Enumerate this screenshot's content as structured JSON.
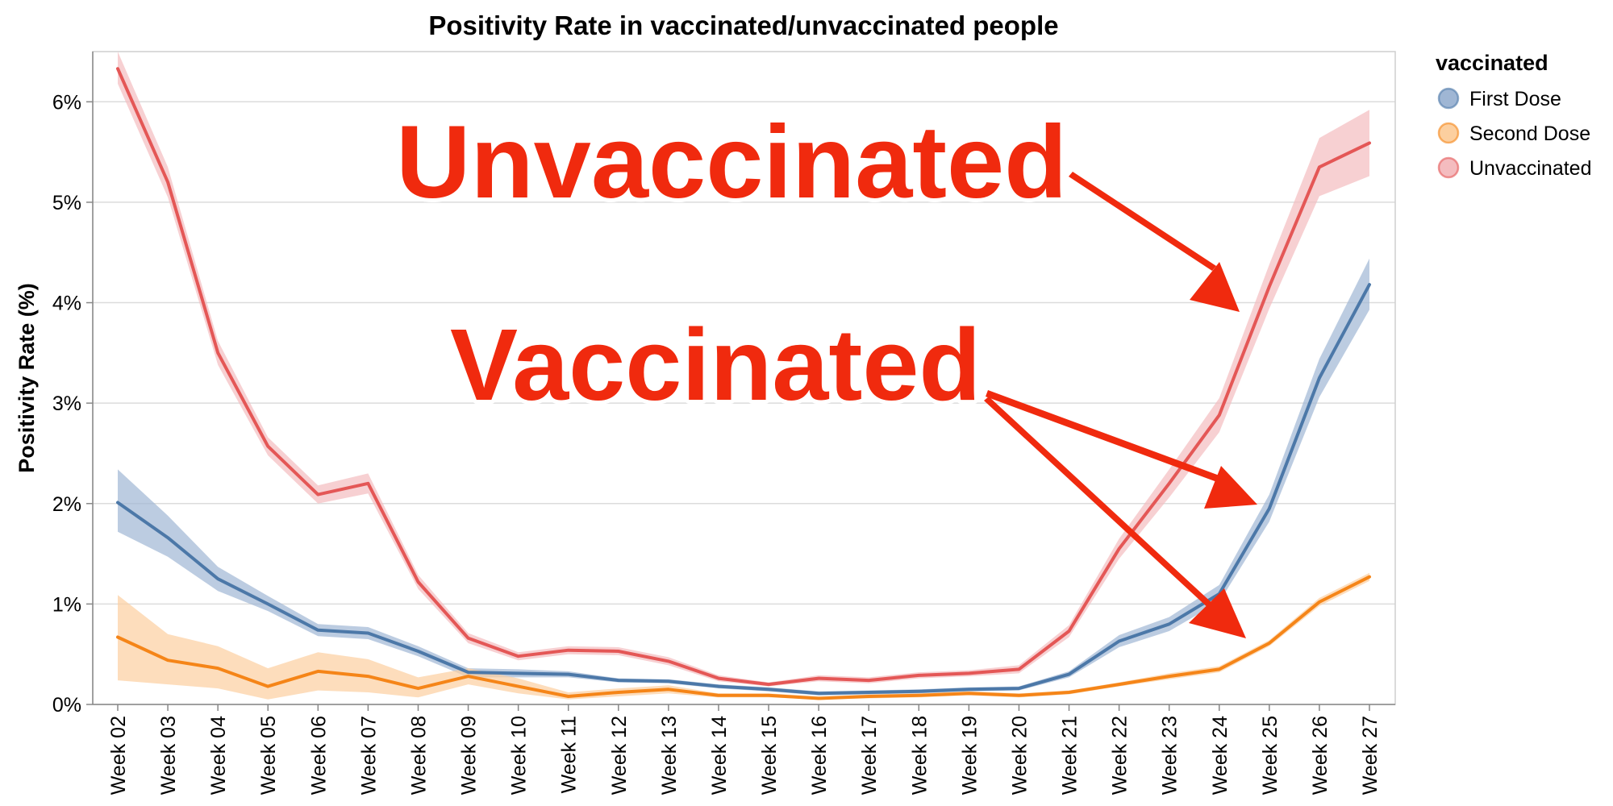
{
  "chart_data": {
    "type": "line",
    "title": "Positivity Rate in vaccinated/unvaccinated people",
    "xlabel": "",
    "ylabel": "Positivity Rate (%)",
    "ylim": [
      0,
      6.5
    ],
    "yticks": [
      "0%",
      "1%",
      "2%",
      "3%",
      "4%",
      "5%",
      "6%"
    ],
    "grid": true,
    "legend": {
      "title": "vaccinated",
      "position": "right"
    },
    "categories": [
      "Week 02",
      "Week 03",
      "Week 04",
      "Week 05",
      "Week 06",
      "Week 07",
      "Week 08",
      "Week 09",
      "Week 10",
      "Week 11",
      "Week 12",
      "Week 13",
      "Week 14",
      "Week 15",
      "Week 16",
      "Week 17",
      "Week 18",
      "Week 19",
      "Week 20",
      "Week 21",
      "Week 22",
      "Week 23",
      "Week 24",
      "Week 25",
      "Week 26",
      "Week 27"
    ],
    "series": [
      {
        "name": "First Dose",
        "color": "#4c78a8",
        "band_color": "#9fb6d4",
        "values": [
          2.01,
          1.66,
          1.25,
          1.0,
          0.74,
          0.71,
          0.53,
          0.32,
          0.31,
          0.3,
          0.24,
          0.23,
          0.18,
          0.15,
          0.11,
          0.12,
          0.13,
          0.15,
          0.16,
          0.3,
          0.63,
          0.8,
          1.1,
          1.95,
          3.25,
          4.18
        ],
        "lower": [
          1.72,
          1.47,
          1.13,
          0.93,
          0.68,
          0.65,
          0.48,
          0.27,
          0.27,
          0.27,
          0.22,
          0.21,
          0.16,
          0.13,
          0.09,
          0.1,
          0.11,
          0.13,
          0.14,
          0.27,
          0.57,
          0.73,
          1.02,
          1.82,
          3.06,
          3.93
        ],
        "upper": [
          2.34,
          1.88,
          1.37,
          1.08,
          0.8,
          0.77,
          0.58,
          0.36,
          0.35,
          0.33,
          0.26,
          0.25,
          0.2,
          0.17,
          0.13,
          0.14,
          0.15,
          0.17,
          0.18,
          0.33,
          0.69,
          0.87,
          1.19,
          2.09,
          3.44,
          4.44
        ]
      },
      {
        "name": "Second Dose",
        "color": "#f58518",
        "band_color": "#fccf9f",
        "values": [
          0.67,
          0.44,
          0.36,
          0.18,
          0.33,
          0.28,
          0.16,
          0.28,
          0.18,
          0.08,
          0.12,
          0.15,
          0.09,
          0.09,
          0.06,
          0.08,
          0.09,
          0.11,
          0.09,
          0.12,
          0.2,
          0.28,
          0.35,
          0.61,
          1.02,
          1.27
        ],
        "lower": [
          0.24,
          0.2,
          0.16,
          0.05,
          0.14,
          0.12,
          0.07,
          0.2,
          0.11,
          0.05,
          0.08,
          0.11,
          0.07,
          0.07,
          0.05,
          0.06,
          0.07,
          0.09,
          0.07,
          0.1,
          0.18,
          0.25,
          0.32,
          0.58,
          0.98,
          1.23
        ],
        "upper": [
          1.09,
          0.7,
          0.58,
          0.36,
          0.52,
          0.45,
          0.27,
          0.36,
          0.26,
          0.12,
          0.16,
          0.19,
          0.11,
          0.11,
          0.08,
          0.1,
          0.11,
          0.13,
          0.11,
          0.14,
          0.22,
          0.31,
          0.38,
          0.64,
          1.06,
          1.31
        ]
      },
      {
        "name": "Unvaccinated",
        "color": "#e45756",
        "band_color": "#f4bcbf",
        "values": [
          6.33,
          5.2,
          3.5,
          2.57,
          2.09,
          2.2,
          1.22,
          0.66,
          0.48,
          0.54,
          0.53,
          0.43,
          0.26,
          0.2,
          0.26,
          0.24,
          0.29,
          0.31,
          0.35,
          0.73,
          1.55,
          2.2,
          2.88,
          4.16,
          5.35,
          5.59
        ],
        "lower": [
          6.18,
          5.05,
          3.38,
          2.48,
          2.0,
          2.1,
          1.15,
          0.61,
          0.44,
          0.5,
          0.49,
          0.39,
          0.23,
          0.18,
          0.23,
          0.21,
          0.26,
          0.28,
          0.31,
          0.67,
          1.45,
          2.06,
          2.71,
          3.94,
          5.06,
          5.26
        ],
        "upper": [
          6.5,
          5.35,
          3.62,
          2.66,
          2.18,
          2.3,
          1.29,
          0.71,
          0.52,
          0.58,
          0.57,
          0.47,
          0.29,
          0.22,
          0.29,
          0.27,
          0.32,
          0.34,
          0.39,
          0.79,
          1.65,
          2.34,
          3.05,
          4.38,
          5.64,
          5.92
        ]
      }
    ],
    "annotations": [
      {
        "text": "Unvaccinated",
        "color": "#f02a0e"
      },
      {
        "text": "Vaccinated",
        "color": "#f02a0e"
      }
    ]
  }
}
